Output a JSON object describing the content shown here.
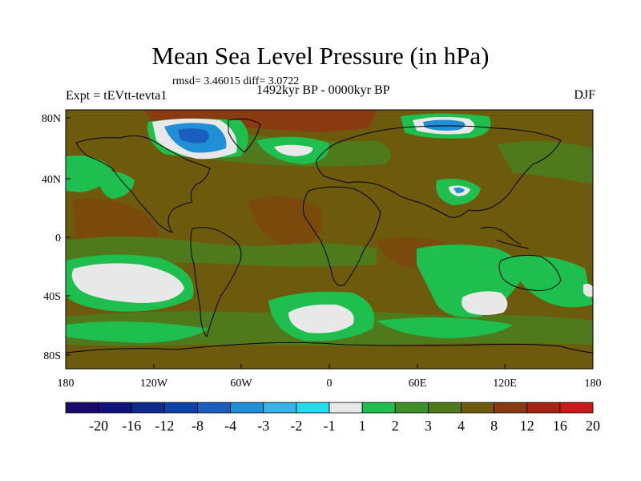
{
  "title": "Mean Sea Level Pressure (in hPa)",
  "stats": "rmsd= 3.46015 diff= 3.0722",
  "experiment": "Expt = tEVtt-tevta1",
  "period": "1492kyr BP - 0000kyr BP",
  "season": "DJF",
  "lat_ticks": [
    "80N",
    "40N",
    "0",
    "40S",
    "80S"
  ],
  "lon_ticks": [
    "180",
    "120W",
    "60W",
    "0",
    "60E",
    "120E",
    "180"
  ],
  "colorbar": {
    "labels": [
      "-20",
      "-16",
      "-12",
      "-8",
      "-4",
      "-3",
      "-2",
      "-1",
      "1",
      "2",
      "3",
      "4",
      "8",
      "12",
      "16",
      "20"
    ],
    "colors": [
      "#1a0a6e",
      "#10137d",
      "#0d2a8c",
      "#0b43a6",
      "#1a5fc0",
      "#1f8fd6",
      "#34b4e8",
      "#22dcef",
      "#e8e8e8",
      "#1fbf4f",
      "#3f8f2a",
      "#4e7a1c",
      "#6e5a0c",
      "#8a3a10",
      "#a82412",
      "#cc1a1a"
    ]
  },
  "colors": {
    "background_field": "#6e5a0c",
    "positive_low": "#3f8f2a",
    "positive_mid": "#4e7a1c",
    "small_change": "#1fbf4f",
    "near_zero": "#e8e8e8",
    "negative": "#1a5fc0",
    "strong_positive": "#8a3a10"
  }
}
